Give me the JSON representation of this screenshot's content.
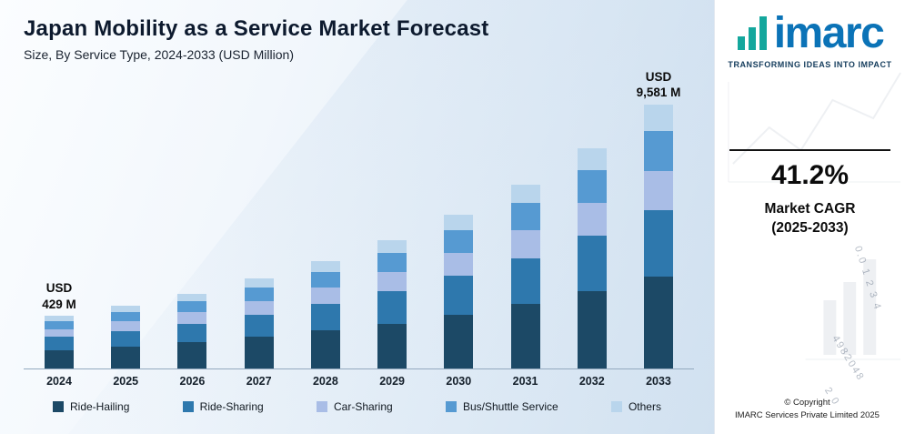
{
  "chart_data": {
    "type": "stacked-bar",
    "title": "Japan Mobility as a Service Market Forecast",
    "subtitle": "Size, By Service Type, 2024-2033 (USD Million)",
    "unit": "USD Million",
    "categories": [
      "2024",
      "2025",
      "2026",
      "2027",
      "2028",
      "2029",
      "2030",
      "2031",
      "2032",
      "2033"
    ],
    "series": [
      {
        "name": "Ride-Hailing",
        "color": "#1c4966",
        "values": [
          150,
          212,
          299,
          423,
          597,
          843,
          1190,
          1680,
          2373,
          3353
        ]
      },
      {
        "name": "Ride-Sharing",
        "color": "#2e78ad",
        "values": [
          107,
          152,
          214,
          302,
          426,
          602,
          850,
          1200,
          1695,
          2395
        ]
      },
      {
        "name": "Car-Sharing",
        "color": "#a9bde6",
        "values": [
          64,
          91,
          128,
          181,
          256,
          361,
          510,
          720,
          1017,
          1437
        ]
      },
      {
        "name": "Bus/Shuttle Service",
        "color": "#569ad2",
        "values": [
          64,
          91,
          128,
          181,
          256,
          361,
          510,
          720,
          1017,
          1437
        ]
      },
      {
        "name": "Others",
        "color": "#b9d5ec",
        "values": [
          44,
          60,
          86,
          121,
          170,
          241,
          340,
          481,
          677,
          959
        ]
      }
    ],
    "totals": [
      429,
      606,
      855,
      1208,
      1705,
      2408,
      3400,
      4801,
      6779,
      9581
    ],
    "annotations": [
      {
        "category_index": 0,
        "lines": [
          "USD",
          "429 M"
        ]
      },
      {
        "category_index": 9,
        "lines": [
          "USD",
          "9,581 M"
        ]
      }
    ],
    "legend_position": "bottom",
    "y_axis_visible": false
  },
  "sidebar": {
    "logo_text": "imarc",
    "tagline": "TRANSFORMING IDEAS INTO IMPACT",
    "cagr_value": "41.2%",
    "cagr_label_line1": "Market CAGR",
    "cagr_label_line2": "(2025-2033)",
    "copyright_line1": "© Copyright",
    "copyright_line2": "IMARC Services Private Limited 2025",
    "decor_numbers": [
      "0.0  1  2  3  4",
      "4982048",
      "2  0"
    ]
  }
}
